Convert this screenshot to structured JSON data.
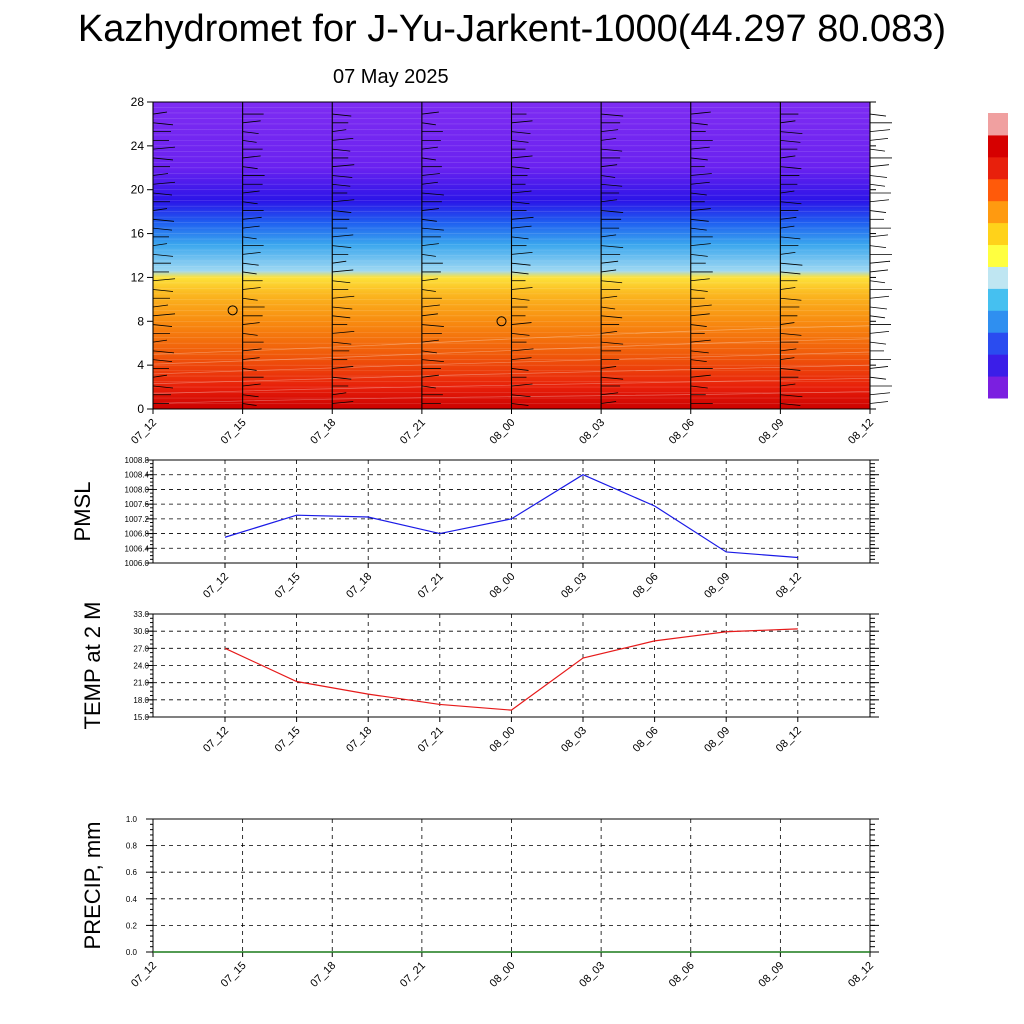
{
  "header": {
    "title": "Kazhydromet for J-Yu-Jarkent-1000(44.297 80.083)",
    "date": "07 May 2025"
  },
  "chart_data": [
    {
      "type": "heatmap",
      "name": "vertical-cross-section",
      "x": [
        "07_12",
        "07_15",
        "07_18",
        "07_21",
        "08_00",
        "08_03",
        "08_06",
        "08_09",
        "08_12"
      ],
      "ylim": [
        0,
        28
      ],
      "yticks": [
        0,
        4,
        8,
        12,
        16,
        20,
        24,
        28
      ],
      "color_levels_bottom_to_top": [
        "#cc0000",
        "#e8200a",
        "#f05a0a",
        "#f88c10",
        "#fbb820",
        "#fde23a",
        "#9fd8f2",
        "#3aa6ee",
        "#1f5ff0",
        "#2b14e8",
        "#6a22f0",
        "#7e2cf2"
      ],
      "color_level_heights": [
        0,
        2,
        5,
        8,
        10.5,
        12,
        12.6,
        15,
        17,
        19,
        22,
        28
      ],
      "wind_barb_stations": [
        "07_12",
        "07_15",
        "07_18",
        "07_21",
        "08_00",
        "08_03",
        "08_06",
        "08_09",
        "08_12"
      ],
      "markers": [
        {
          "x": "07_15",
          "y": 9
        },
        {
          "x": "08_00",
          "y": 8
        }
      ],
      "colorbar": [
        "#7b1fe0",
        "#3b1ee8",
        "#2a4cf0",
        "#2f8ff0",
        "#45c0f0",
        "#bfe6f2",
        "#ffff40",
        "#ffd21a",
        "#ff9a10",
        "#ff5a0a",
        "#e8200c",
        "#d60000",
        "#f0a0a0"
      ]
    },
    {
      "type": "line",
      "ylabel": "PMSL",
      "x": [
        "07_12",
        "07_15",
        "07_18",
        "07_21",
        "08_00",
        "08_03",
        "08_06",
        "08_09",
        "08_12"
      ],
      "values": [
        1006.7,
        1007.3,
        1007.25,
        1006.8,
        1007.2,
        1008.4,
        1007.55,
        1006.3,
        1006.15
      ],
      "ylim": [
        1006.0,
        1008.8
      ],
      "yticks": [
        "1006.0",
        "1006.4",
        "1006.8",
        "1007.2",
        "1007.6",
        "1008.0",
        "1008.4",
        "1008.8"
      ],
      "color": "#1a1ae6",
      "grid": true
    },
    {
      "type": "line",
      "ylabel": "TEMP at 2 M",
      "x": [
        "07_12",
        "07_15",
        "07_18",
        "07_21",
        "08_00",
        "08_03",
        "08_06",
        "08_09",
        "08_12"
      ],
      "values": [
        27.0,
        21.2,
        19.0,
        17.2,
        16.2,
        25.3,
        28.3,
        29.9,
        30.4
      ],
      "ylim": [
        15.0,
        33.0
      ],
      "yticks": [
        "15.0",
        "18.0",
        "21.0",
        "24.0",
        "27.0",
        "30.0",
        "33.0"
      ],
      "color": "#e61a1a",
      "grid": true
    },
    {
      "type": "line",
      "ylabel": "PRECIP, mm",
      "x": [
        "07_12",
        "07_15",
        "07_18",
        "07_21",
        "08_00",
        "08_03",
        "08_06",
        "08_09",
        "08_12"
      ],
      "values": [
        0,
        0,
        0,
        0,
        0,
        0,
        0,
        0,
        0
      ],
      "ylim": [
        0.0,
        1.0
      ],
      "yticks": [
        "0.0",
        "0.2",
        "0.4",
        "0.6",
        "0.8",
        "1.0"
      ],
      "color": "#1a7a1a",
      "grid": true
    }
  ]
}
